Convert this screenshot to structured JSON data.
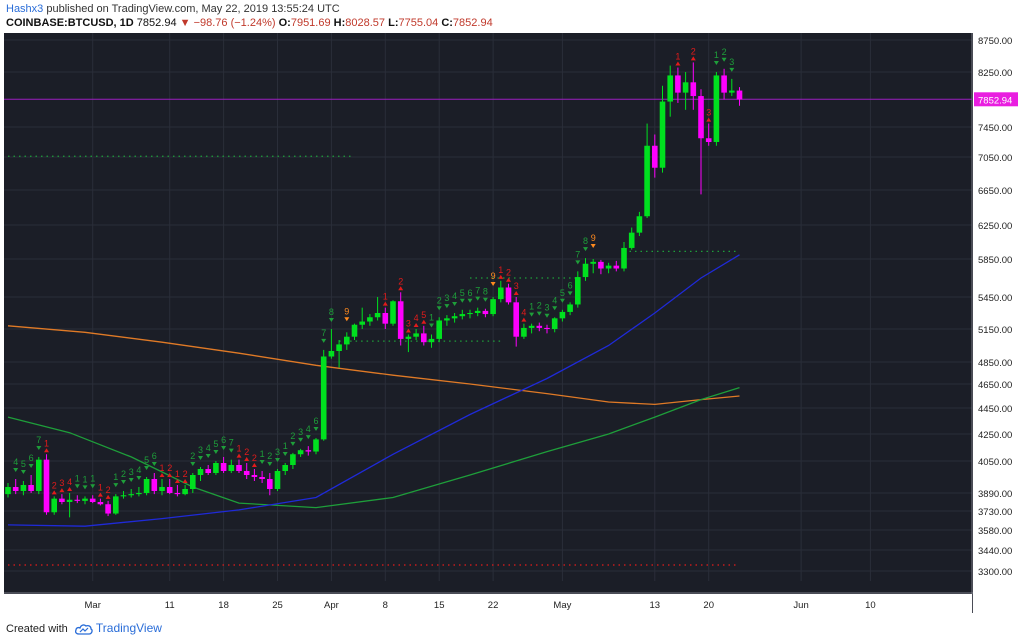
{
  "header": {
    "author": "Hashx3",
    "published": "published on TradingView.com, May 22, 2019 13:55:24 UTC",
    "symbol": "COINBASE:BTCUSD, 1D",
    "last": "7852.94",
    "change": "−98.76 (−1.24%)",
    "o_label": "O:",
    "o_val": "7951.69",
    "h_label": "H:",
    "h_val": "8028.57",
    "l_label": "L:",
    "l_val": "7755.04",
    "c_label": "C:",
    "c_val": "7852.94"
  },
  "footer": {
    "created_with": "Created with",
    "brand": "TradingView"
  },
  "colors": {
    "background": "#1b1e27",
    "up": "#00e01f",
    "down": "#ff00ff",
    "ma_orange": "#e07a26",
    "ma_blue": "#1f2ad8",
    "ma_green": "#1e9e3a",
    "price_line": "#9b1fbf",
    "seq_up": "#1e9e3a",
    "seq_down": "#e21b1b",
    "seq_nine": "#ff8a1f"
  },
  "chart_data": {
    "type": "candlestick",
    "symbol": "COINBASE:BTCUSD",
    "interval": "1D",
    "y_ticks": [
      3300,
      3440,
      3580,
      3730,
      3890,
      4050,
      4250,
      4450,
      4650,
      4850,
      5150,
      5450,
      5850,
      6250,
      6650,
      7050,
      7450,
      8250,
      8750
    ],
    "y_tick_labels": [
      "3300.00",
      "3440.00",
      "3580.00",
      "3730.00",
      "3890.00",
      "4050.00",
      "4250.00",
      "4450.00",
      "4650.00",
      "4850.00",
      "5150.00",
      "5450.00",
      "5850.00",
      "6250.00",
      "6650.00",
      "7050.00",
      "7450.00",
      "8250.00",
      "8750.00"
    ],
    "ylim": [
      3200,
      8800
    ],
    "x_labels": [
      {
        "label": "Mar",
        "bar": 11
      },
      {
        "label": "11",
        "bar": 21
      },
      {
        "label": "18",
        "bar": 28
      },
      {
        "label": "25",
        "bar": 35
      },
      {
        "label": "Apr",
        "bar": 42
      },
      {
        "label": "8",
        "bar": 49
      },
      {
        "label": "15",
        "bar": 56
      },
      {
        "label": "22",
        "bar": 63
      },
      {
        "label": "May",
        "bar": 72
      },
      {
        "label": "13",
        "bar": 84
      },
      {
        "label": "20",
        "bar": 91
      },
      {
        "label": "Jun",
        "bar": 103
      },
      {
        "label": "10",
        "bar": 112
      }
    ],
    "last_price": 7852.94,
    "last_price_label": "7852.94",
    "candles": [
      [
        3880,
        3940,
        3850,
        3920
      ],
      [
        3920,
        3960,
        3880,
        3900
      ],
      [
        3900,
        3950,
        3870,
        3930
      ],
      [
        3930,
        3980,
        3890,
        3900
      ],
      [
        3900,
        4080,
        3880,
        4060
      ],
      [
        4060,
        4100,
        3700,
        3720
      ],
      [
        3720,
        3860,
        3700,
        3840
      ],
      [
        3840,
        3880,
        3790,
        3810
      ],
      [
        3810,
        3890,
        3680,
        3830
      ],
      [
        3830,
        3870,
        3800,
        3820
      ],
      [
        3820,
        3860,
        3790,
        3840
      ],
      [
        3840,
        3870,
        3800,
        3810
      ],
      [
        3810,
        3840,
        3780,
        3790
      ],
      [
        3790,
        3820,
        3690,
        3710
      ],
      [
        3710,
        3880,
        3700,
        3860
      ],
      [
        3860,
        3900,
        3840,
        3870
      ],
      [
        3870,
        3910,
        3850,
        3880
      ],
      [
        3880,
        3920,
        3860,
        3890
      ],
      [
        3890,
        3970,
        3870,
        3960
      ],
      [
        3960,
        3990,
        3880,
        3900
      ],
      [
        3900,
        3960,
        3870,
        3920
      ],
      [
        3920,
        3960,
        3880,
        3890
      ],
      [
        3890,
        3930,
        3860,
        3880
      ],
      [
        3880,
        3930,
        3870,
        3910
      ],
      [
        3910,
        3990,
        3890,
        3980
      ],
      [
        3980,
        4020,
        3950,
        4010
      ],
      [
        4010,
        4030,
        3980,
        3990
      ],
      [
        3990,
        4050,
        3980,
        4040
      ],
      [
        4040,
        4080,
        3990,
        4000
      ],
      [
        4000,
        4060,
        3990,
        4030
      ],
      [
        4030,
        4060,
        3990,
        4000
      ],
      [
        4000,
        4040,
        3960,
        3980
      ],
      [
        3980,
        4010,
        3950,
        3970
      ],
      [
        3970,
        4000,
        3940,
        3960
      ],
      [
        3960,
        3990,
        3870,
        3910
      ],
      [
        3910,
        4010,
        3900,
        4000
      ],
      [
        4000,
        4040,
        3980,
        4030
      ],
      [
        4030,
        4110,
        4010,
        4100
      ],
      [
        4100,
        4140,
        4080,
        4130
      ],
      [
        4130,
        4160,
        4090,
        4120
      ],
      [
        4120,
        4220,
        4100,
        4210
      ],
      [
        4210,
        4960,
        4200,
        4900
      ],
      [
        4900,
        5150,
        4880,
        4950
      ],
      [
        4950,
        5050,
        4800,
        5010
      ],
      [
        5010,
        5120,
        4960,
        5080
      ],
      [
        5080,
        5200,
        5050,
        5190
      ],
      [
        5190,
        5350,
        5150,
        5220
      ],
      [
        5220,
        5290,
        5180,
        5260
      ],
      [
        5260,
        5450,
        5230,
        5300
      ],
      [
        5300,
        5350,
        5150,
        5200
      ],
      [
        5200,
        5420,
        5180,
        5410
      ],
      [
        5410,
        5500,
        5000,
        5060
      ],
      [
        5060,
        5100,
        4940,
        5080
      ],
      [
        5080,
        5150,
        5050,
        5110
      ],
      [
        5110,
        5180,
        5000,
        5030
      ],
      [
        5030,
        5100,
        4980,
        5060
      ],
      [
        5060,
        5260,
        5030,
        5230
      ],
      [
        5230,
        5280,
        5180,
        5250
      ],
      [
        5250,
        5300,
        5210,
        5270
      ],
      [
        5270,
        5330,
        5240,
        5290
      ],
      [
        5290,
        5330,
        5250,
        5300
      ],
      [
        5300,
        5350,
        5270,
        5320
      ],
      [
        5320,
        5340,
        5260,
        5290
      ],
      [
        5290,
        5450,
        5270,
        5430
      ],
      [
        5430,
        5620,
        5400,
        5550
      ],
      [
        5550,
        5590,
        5380,
        5400
      ],
      [
        5400,
        5450,
        4990,
        5080
      ],
      [
        5080,
        5200,
        5060,
        5160
      ],
      [
        5160,
        5200,
        5110,
        5180
      ],
      [
        5180,
        5210,
        5130,
        5160
      ],
      [
        5160,
        5190,
        5110,
        5150
      ],
      [
        5150,
        5260,
        5120,
        5250
      ],
      [
        5250,
        5330,
        5220,
        5310
      ],
      [
        5310,
        5400,
        5280,
        5380
      ],
      [
        5380,
        5720,
        5350,
        5660
      ],
      [
        5660,
        5860,
        5620,
        5800
      ],
      [
        5800,
        5850,
        5700,
        5820
      ],
      [
        5820,
        5840,
        5690,
        5750
      ],
      [
        5750,
        5810,
        5700,
        5780
      ],
      [
        5780,
        5830,
        5720,
        5750
      ],
      [
        5750,
        6050,
        5720,
        5980
      ],
      [
        5980,
        6220,
        5960,
        6160
      ],
      [
        6160,
        6400,
        6120,
        6350
      ],
      [
        6350,
        7500,
        6330,
        7200
      ],
      [
        7200,
        7350,
        6800,
        6920
      ],
      [
        6920,
        8050,
        6860,
        7820
      ],
      [
        7820,
        8350,
        7600,
        8200
      ],
      [
        8200,
        8320,
        7800,
        7950
      ],
      [
        7950,
        8250,
        7700,
        8100
      ],
      [
        8100,
        8400,
        7700,
        7900
      ],
      [
        7900,
        8000,
        6600,
        7300
      ],
      [
        7300,
        7500,
        7200,
        7250
      ],
      [
        7250,
        8250,
        7200,
        8200
      ],
      [
        8200,
        8300,
        7850,
        7950
      ],
      [
        7950,
        8150,
        7900,
        7980
      ],
      [
        7980,
        8030,
        7760,
        7850
      ]
    ],
    "td_labels": [
      {
        "bar": 1,
        "text": "4",
        "side": "up"
      },
      {
        "bar": 2,
        "text": "5",
        "side": "up"
      },
      {
        "bar": 3,
        "text": "6",
        "side": "up"
      },
      {
        "bar": 4,
        "text": "7",
        "side": "up"
      },
      {
        "bar": 5,
        "text": "1",
        "side": "down"
      },
      {
        "bar": 6,
        "text": "2",
        "side": "down"
      },
      {
        "bar": 7,
        "text": "3",
        "side": "down"
      },
      {
        "bar": 8,
        "text": "4",
        "side": "down"
      },
      {
        "bar": 9,
        "text": "1",
        "side": "up"
      },
      {
        "bar": 10,
        "text": "1",
        "side": "up"
      },
      {
        "bar": 11,
        "text": "1",
        "side": "up"
      },
      {
        "bar": 12,
        "text": "1",
        "side": "down"
      },
      {
        "bar": 13,
        "text": "2",
        "side": "down"
      },
      {
        "bar": 14,
        "text": "1",
        "side": "up"
      },
      {
        "bar": 15,
        "text": "2",
        "side": "up"
      },
      {
        "bar": 16,
        "text": "3",
        "side": "up"
      },
      {
        "bar": 17,
        "text": "4",
        "side": "up"
      },
      {
        "bar": 18,
        "text": "5",
        "side": "up"
      },
      {
        "bar": 19,
        "text": "6",
        "side": "up"
      },
      {
        "bar": 20,
        "text": "1",
        "side": "down"
      },
      {
        "bar": 21,
        "text": "2",
        "side": "down"
      },
      {
        "bar": 22,
        "text": "1",
        "side": "down"
      },
      {
        "bar": 23,
        "text": "2",
        "side": "down"
      },
      {
        "bar": 24,
        "text": "2",
        "side": "up"
      },
      {
        "bar": 25,
        "text": "3",
        "side": "up"
      },
      {
        "bar": 26,
        "text": "4",
        "side": "up"
      },
      {
        "bar": 27,
        "text": "5",
        "side": "up"
      },
      {
        "bar": 28,
        "text": "6",
        "side": "up"
      },
      {
        "bar": 29,
        "text": "7",
        "side": "up"
      },
      {
        "bar": 30,
        "text": "1",
        "side": "down"
      },
      {
        "bar": 31,
        "text": "2",
        "side": "down"
      },
      {
        "bar": 32,
        "text": "2",
        "side": "down"
      },
      {
        "bar": 33,
        "text": "1",
        "side": "up"
      },
      {
        "bar": 34,
        "text": "2",
        "side": "up"
      },
      {
        "bar": 35,
        "text": "3",
        "side": "up"
      },
      {
        "bar": 36,
        "text": "1",
        "side": "up"
      },
      {
        "bar": 37,
        "text": "2",
        "side": "up"
      },
      {
        "bar": 38,
        "text": "3",
        "side": "up"
      },
      {
        "bar": 39,
        "text": "4",
        "side": "up"
      },
      {
        "bar": 40,
        "text": "6",
        "side": "up"
      },
      {
        "bar": 41,
        "text": "7",
        "side": "up"
      },
      {
        "bar": 42,
        "text": "8",
        "side": "up"
      },
      {
        "bar": 44,
        "text": "9",
        "side": "nine"
      },
      {
        "bar": 49,
        "text": "1",
        "side": "down"
      },
      {
        "bar": 51,
        "text": "2",
        "side": "down"
      },
      {
        "bar": 52,
        "text": "3",
        "side": "down"
      },
      {
        "bar": 53,
        "text": "4",
        "side": "down"
      },
      {
        "bar": 54,
        "text": "5",
        "side": "down"
      },
      {
        "bar": 55,
        "text": "1",
        "side": "up"
      },
      {
        "bar": 56,
        "text": "2",
        "side": "up"
      },
      {
        "bar": 57,
        "text": "3",
        "side": "up"
      },
      {
        "bar": 58,
        "text": "4",
        "side": "up"
      },
      {
        "bar": 59,
        "text": "5",
        "side": "up"
      },
      {
        "bar": 60,
        "text": "6",
        "side": "up"
      },
      {
        "bar": 61,
        "text": "7",
        "side": "up"
      },
      {
        "bar": 62,
        "text": "8",
        "side": "up"
      },
      {
        "bar": 63,
        "text": "9",
        "side": "nine"
      },
      {
        "bar": 64,
        "text": "1",
        "side": "down"
      },
      {
        "bar": 65,
        "text": "2",
        "side": "down"
      },
      {
        "bar": 66,
        "text": "3",
        "side": "down"
      },
      {
        "bar": 67,
        "text": "4",
        "side": "down"
      },
      {
        "bar": 68,
        "text": "1",
        "side": "up"
      },
      {
        "bar": 69,
        "text": "2",
        "side": "up"
      },
      {
        "bar": 70,
        "text": "3",
        "side": "up"
      },
      {
        "bar": 71,
        "text": "4",
        "side": "up"
      },
      {
        "bar": 72,
        "text": "5",
        "side": "up"
      },
      {
        "bar": 73,
        "text": "6",
        "side": "up"
      },
      {
        "bar": 74,
        "text": "7",
        "side": "up"
      },
      {
        "bar": 75,
        "text": "8",
        "side": "up"
      },
      {
        "bar": 76,
        "text": "9",
        "side": "nine"
      },
      {
        "bar": 87,
        "text": "1",
        "side": "down"
      },
      {
        "bar": 89,
        "text": "2",
        "side": "down"
      },
      {
        "bar": 91,
        "text": "3",
        "side": "down"
      },
      {
        "bar": 92,
        "text": "1",
        "side": "up"
      },
      {
        "bar": 93,
        "text": "2",
        "side": "up"
      },
      {
        "bar": 94,
        "text": "3",
        "side": "up"
      }
    ],
    "ma_orange": [
      [
        0,
        5180
      ],
      [
        10,
        5120
      ],
      [
        20,
        5030
      ],
      [
        30,
        4930
      ],
      [
        40,
        4820
      ],
      [
        50,
        4730
      ],
      [
        60,
        4650
      ],
      [
        70,
        4570
      ],
      [
        78,
        4500
      ],
      [
        84,
        4480
      ],
      [
        90,
        4520
      ],
      [
        95,
        4550
      ]
    ],
    "ma_blue": [
      [
        0,
        3620
      ],
      [
        10,
        3610
      ],
      [
        20,
        3670
      ],
      [
        30,
        3740
      ],
      [
        40,
        3850
      ],
      [
        50,
        4100
      ],
      [
        60,
        4400
      ],
      [
        70,
        4700
      ],
      [
        78,
        5000
      ],
      [
        84,
        5300
      ],
      [
        90,
        5650
      ],
      [
        95,
        5900
      ]
    ],
    "ma_green": [
      [
        0,
        4380
      ],
      [
        8,
        4260
      ],
      [
        16,
        4080
      ],
      [
        24,
        3920
      ],
      [
        30,
        3800
      ],
      [
        40,
        3760
      ],
      [
        50,
        3850
      ],
      [
        60,
        3980
      ],
      [
        70,
        4120
      ],
      [
        78,
        4250
      ],
      [
        84,
        4380
      ],
      [
        90,
        4520
      ],
      [
        95,
        4620
      ]
    ],
    "dotted_levels": [
      {
        "value": 7060,
        "from": 0,
        "to": 45,
        "color": "#1e9e3a"
      },
      {
        "value": 5940,
        "from": 80,
        "to": 95,
        "color": "#1e9e3a"
      },
      {
        "value": 5650,
        "from": 60,
        "to": 74,
        "color": "#1e9e3a"
      },
      {
        "value": 5040,
        "from": 43,
        "to": 64,
        "color": "#1e9e3a"
      },
      {
        "value": 3340,
        "from": 0,
        "to": 95,
        "color": "#e21b1b"
      }
    ]
  }
}
